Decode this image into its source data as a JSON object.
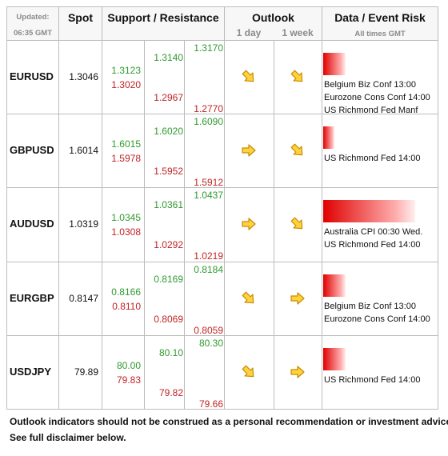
{
  "header": {
    "updated_label": "Updated:",
    "updated_time": "06:35 GMT",
    "spot": "Spot",
    "support_resistance": "Support / Resistance",
    "outlook": "Outlook",
    "outlook_day": "1 day",
    "outlook_week": "1 week",
    "data_event_risk": "Data / Event Risk",
    "all_times": "All times GMT"
  },
  "rows": [
    {
      "pair": "EURUSD",
      "spot": "1.3046",
      "resistance": [
        "1.3123",
        "1.3140",
        "1.3170"
      ],
      "support": [
        "1.3020",
        "1.2967",
        "1.2770"
      ],
      "events": [
        "Belgium Biz Conf 13:00",
        "Eurozone Cons Conf 14:00",
        "US Richmond Fed Manf"
      ]
    },
    {
      "pair": "GBPUSD",
      "spot": "1.6014",
      "resistance": [
        "1.6015",
        "1.6020",
        "1.6090"
      ],
      "support": [
        "1.5978",
        "1.5952",
        "1.5912"
      ],
      "events": [
        "US Richmond Fed 14:00"
      ]
    },
    {
      "pair": "AUDUSD",
      "spot": "1.0319",
      "resistance": [
        "1.0345",
        "1.0361",
        "1.0437"
      ],
      "support": [
        "1.0308",
        "1.0292",
        "1.0219"
      ],
      "events": [
        "Australia CPI 00:30 Wed.",
        "US Richmond Fed 14:00"
      ]
    },
    {
      "pair": "EURGBP",
      "spot": "0.8147",
      "resistance": [
        "0.8166",
        "0.8169",
        "0.8184"
      ],
      "support": [
        "0.8110",
        "0.8069",
        "0.8059"
      ],
      "events": [
        "Belgium Biz Conf 13:00",
        "Eurozone Cons Conf 14:00"
      ]
    },
    {
      "pair": "USDJPY",
      "spot": "79.89",
      "resistance": [
        "80.00",
        "80.10",
        "80.30"
      ],
      "support": [
        "79.83",
        "79.82",
        "79.66"
      ],
      "events": [
        "US Richmond Fed 14:00"
      ]
    }
  ],
  "footer": [
    "Outlook indicators should not be construed as a personal recommendation or investment advice.",
    "See full disclaimer below."
  ]
}
